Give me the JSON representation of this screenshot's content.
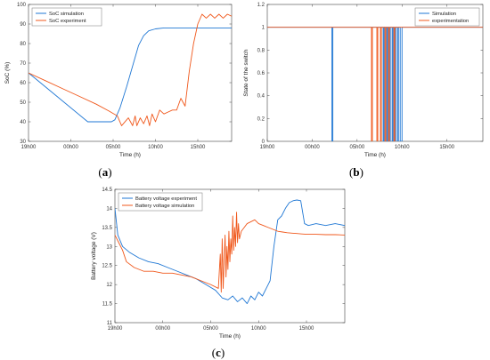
{
  "colors": {
    "simulation": "#1f77d4",
    "experiment": "#f0581c",
    "axis": "#333333"
  },
  "chart_data": [
    {
      "type": "line",
      "caption_letter": "a",
      "xlabel": "Time (h)",
      "ylabel": "SoC (%)",
      "xlim": [
        0,
        24
      ],
      "ylim": [
        30,
        100
      ],
      "x_ticks": [
        0,
        5,
        10,
        15,
        20
      ],
      "x_tick_labels": [
        "19h00",
        "00h00",
        "05h00",
        "10h00",
        "15h00"
      ],
      "y_ticks": [
        30,
        40,
        50,
        60,
        70,
        80,
        90,
        100
      ],
      "legend": {
        "placement": "top-left"
      },
      "series": [
        {
          "name": "SoC simulation",
          "color_key": "simulation",
          "x": [
            0,
            7.0,
            9.0,
            9.8,
            10.2,
            10.8,
            11.6,
            12.4,
            13.0,
            13.6,
            14.2,
            15.0,
            16.0,
            18.0,
            24.0
          ],
          "y": [
            65,
            40,
            40,
            40,
            41,
            47,
            58,
            70,
            79,
            84,
            86.5,
            87.5,
            88,
            88,
            88
          ]
        },
        {
          "name": "SoC experiment",
          "color_key": "experiment",
          "x": [
            0,
            2,
            4,
            6,
            8,
            9.5,
            10.5,
            11.0,
            11.8,
            12.3,
            12.6,
            12.8,
            13.2,
            13.6,
            14.0,
            14.3,
            14.6,
            15.0,
            15.5,
            16.0,
            16.5,
            17.0,
            17.5,
            18.0,
            18.5,
            19.0,
            19.5,
            20.0,
            20.5,
            21.0,
            21.5,
            22.0,
            22.5,
            23.0,
            23.5,
            24.0
          ],
          "y": [
            65,
            61,
            57,
            53,
            49,
            45.5,
            43,
            38,
            42,
            38,
            43,
            38,
            42,
            39,
            43,
            38,
            44,
            40,
            46,
            44,
            45,
            46,
            46,
            52,
            48,
            66,
            80,
            90,
            95,
            93,
            95,
            93,
            95,
            93,
            95,
            94
          ]
        }
      ]
    },
    {
      "type": "line",
      "caption_letter": "b",
      "xlabel": "Time (h)",
      "ylabel": "State of the switch",
      "xlim": [
        0,
        24
      ],
      "ylim": [
        0,
        1.2
      ],
      "x_ticks": [
        0,
        5,
        10,
        15,
        20
      ],
      "x_tick_labels": [
        "19h00",
        "00h00",
        "05h00",
        "10h00",
        "15h00"
      ],
      "y_ticks": [
        0,
        0.2,
        0.4,
        0.6,
        0.8,
        1,
        1.2
      ],
      "y_tick_labels": [
        "0",
        "0.2",
        "0.4",
        "0.6",
        "0.8",
        "1",
        "1.2"
      ],
      "legend": {
        "placement": "top-right"
      },
      "series": [
        {
          "name": "Simulation",
          "color_key": "simulation",
          "x": [
            0,
            7.2,
            7.2,
            7.3,
            7.3,
            12.9,
            12.9,
            13.0,
            13.0,
            13.3,
            13.3,
            13.4,
            13.4,
            13.6,
            13.6,
            13.7,
            13.7,
            13.9,
            13.9,
            14.0,
            14.0,
            14.2,
            14.2,
            14.3,
            14.3,
            14.5,
            14.5,
            14.6,
            14.6,
            14.8,
            14.8,
            15.0,
            15.0,
            24
          ],
          "y": [
            1,
            1,
            0,
            0,
            1,
            1,
            0,
            0,
            1,
            1,
            0,
            0,
            1,
            1,
            0,
            0,
            1,
            1,
            0,
            0,
            1,
            1,
            0,
            0,
            1,
            1,
            0,
            0,
            1,
            1,
            0,
            0,
            1,
            1
          ]
        },
        {
          "name": "experimentation",
          "color_key": "experiment",
          "x": [
            0,
            11.6,
            11.6,
            11.7,
            11.7,
            12.2,
            12.2,
            12.3,
            12.3,
            12.6,
            12.6,
            12.7,
            12.7,
            13.1,
            13.1,
            13.2,
            13.2,
            13.5,
            13.5,
            13.6,
            13.6,
            14.1,
            14.1,
            14.2,
            14.2,
            24
          ],
          "y": [
            1,
            1,
            0,
            0,
            1,
            1,
            0,
            0,
            1,
            1,
            0,
            0,
            1,
            1,
            0,
            0,
            1,
            1,
            0,
            0,
            1,
            1,
            0,
            0,
            1,
            1
          ]
        }
      ]
    },
    {
      "type": "line",
      "caption_letter": "c",
      "xlabel": "Time (h)",
      "ylabel": "Battery voltage (V)",
      "xlim": [
        0,
        24
      ],
      "ylim": [
        11,
        14.5
      ],
      "x_ticks": [
        0,
        5,
        10,
        15,
        20
      ],
      "x_tick_labels": [
        "19h00",
        "00h00",
        "05h00",
        "10h00",
        "15h00"
      ],
      "y_ticks": [
        11,
        11.5,
        12,
        12.5,
        13,
        13.5,
        14,
        14.5
      ],
      "legend": {
        "placement": "top-left"
      },
      "series": [
        {
          "name": "Battery voltage experiment",
          "color_key": "simulation",
          "x": [
            0,
            0.3,
            0.8,
            1.5,
            2.5,
            3.5,
            4.5,
            5.5,
            6.5,
            7.5,
            8.5,
            9.5,
            10.5,
            11.2,
            11.8,
            12.3,
            12.8,
            13.3,
            13.8,
            14.2,
            14.6,
            15.0,
            15.4,
            15.8,
            16.2,
            16.6,
            17.0,
            17.4,
            17.8,
            18.2,
            18.6,
            19.0,
            19.4,
            19.8,
            20.2,
            21,
            22,
            23,
            24
          ],
          "y": [
            14.0,
            13.3,
            13.0,
            12.85,
            12.7,
            12.6,
            12.55,
            12.45,
            12.35,
            12.25,
            12.15,
            12.0,
            11.85,
            11.65,
            11.6,
            11.7,
            11.55,
            11.65,
            11.5,
            11.7,
            11.6,
            11.8,
            11.7,
            11.9,
            12.1,
            13.0,
            13.7,
            13.8,
            14.0,
            14.15,
            14.2,
            14.22,
            14.2,
            13.6,
            13.55,
            13.6,
            13.55,
            13.6,
            13.55
          ]
        },
        {
          "name": "Battery voltage simulation",
          "color_key": "experiment",
          "x": [
            0,
            0.4,
            0.8,
            1.2,
            2.0,
            3.0,
            4.0,
            5.0,
            6.0,
            7.0,
            8.0,
            9.0,
            10.0,
            10.8,
            11.0,
            11.1,
            11.2,
            11.3,
            11.4,
            11.5,
            11.6,
            11.7,
            11.8,
            11.9,
            12.0,
            12.1,
            12.2,
            12.3,
            12.4,
            12.5,
            12.6,
            12.7,
            12.8,
            12.9,
            13.0,
            13.2,
            13.5,
            13.8,
            14.2,
            14.6,
            15.0,
            15.5,
            16.0,
            16.5,
            17.0,
            17.5,
            18.0,
            18.5,
            19.0,
            19.5,
            20.0,
            21,
            22,
            23,
            24
          ],
          "y": [
            13.3,
            13.1,
            12.9,
            12.6,
            12.45,
            12.35,
            12.35,
            12.3,
            12.3,
            12.25,
            12.2,
            12.1,
            12.0,
            11.9,
            12.8,
            11.8,
            13.2,
            11.9,
            12.6,
            13.3,
            12.2,
            13.0,
            12.4,
            13.4,
            12.6,
            13.2,
            12.8,
            13.8,
            12.9,
            13.5,
            13.0,
            13.9,
            13.1,
            13.6,
            13.2,
            13.4,
            13.5,
            13.6,
            13.65,
            13.7,
            13.6,
            13.55,
            13.5,
            13.45,
            13.4,
            13.38,
            13.36,
            13.35,
            13.34,
            13.33,
            13.32,
            13.32,
            13.31,
            13.31,
            13.3
          ]
        }
      ]
    }
  ]
}
